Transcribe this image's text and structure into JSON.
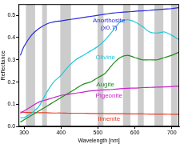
{
  "chart_data": {
    "type": "line",
    "x_label": "Wavelength [nm]",
    "y_label": "Reflectance",
    "xlim": [
      285,
      720
    ],
    "ylim": [
      0,
      0.55
    ],
    "xticks": [
      300,
      400,
      500,
      600,
      700
    ],
    "yticks": [
      {
        "value": 0,
        "label": "0.0"
      },
      0.1,
      0.2,
      0.3,
      0.4,
      0.5
    ],
    "grid": false,
    "x": [
      290,
      300,
      320,
      340,
      360,
      380,
      400,
      420,
      440,
      460,
      480,
      500,
      520,
      540,
      560,
      580,
      600,
      620,
      640,
      660,
      680,
      700,
      720
    ],
    "series": [
      {
        "name": "Anorthosite",
        "color": "#2a2ae0",
        "values": [
          0.32,
          0.36,
          0.41,
          0.44,
          0.46,
          0.47,
          0.475,
          0.48,
          0.485,
          0.49,
          0.495,
          0.5,
          0.505,
          0.51,
          0.513,
          0.515,
          0.518,
          0.52,
          0.522,
          0.525,
          0.528,
          0.53,
          0.535
        ]
      },
      {
        "name": "Olivine",
        "color": "#22c8d8",
        "values": [
          0.04,
          0.04,
          0.06,
          0.09,
          0.15,
          0.2,
          0.23,
          0.27,
          0.3,
          0.32,
          0.34,
          0.36,
          0.39,
          0.43,
          0.47,
          0.48,
          0.47,
          0.45,
          0.425,
          0.42,
          0.425,
          0.41,
          0.39
        ]
      },
      {
        "name": "Augite",
        "color": "#1f8f1f",
        "values": [
          0.02,
          0.03,
          0.05,
          0.07,
          0.09,
          0.11,
          0.13,
          0.15,
          0.17,
          0.19,
          0.2,
          0.22,
          0.24,
          0.28,
          0.31,
          0.32,
          0.31,
          0.3,
          0.3,
          0.3,
          0.31,
          0.32,
          0.335
        ]
      },
      {
        "name": "Pigeonite",
        "color": "#cc22cc",
        "values": [
          0.06,
          0.07,
          0.09,
          0.11,
          0.12,
          0.13,
          0.14,
          0.145,
          0.15,
          0.155,
          0.16,
          0.163,
          0.165,
          0.167,
          0.17,
          0.172,
          0.173,
          0.175,
          0.176,
          0.177,
          0.178,
          0.18,
          0.182
        ]
      },
      {
        "name": "Ilmenite",
        "color": "#e8402a",
        "values": [
          0.065,
          0.064,
          0.063,
          0.062,
          0.062,
          0.061,
          0.061,
          0.06,
          0.06,
          0.06,
          0.059,
          0.059,
          0.058,
          0.058,
          0.058,
          0.057,
          0.057,
          0.057,
          0.056,
          0.056,
          0.056,
          0.055,
          0.055
        ]
      }
    ],
    "bands": [
      [
        305,
        330
      ],
      [
        349,
        362
      ],
      [
        398,
        427
      ],
      [
        499,
        515
      ],
      [
        568,
        588
      ],
      [
        608,
        624
      ],
      [
        653,
        677
      ],
      [
        698,
        716
      ]
    ],
    "annotations": [
      {
        "text": "Anorthosite",
        "x": 530,
        "y": 0.475,
        "color": "#2a2ae0"
      },
      {
        "text": "(x0.7)",
        "x": 530,
        "y": 0.445,
        "color": "#2a2ae0"
      },
      {
        "text": "Olivine",
        "x": 520,
        "y": 0.31,
        "color": "#22c8d8"
      },
      {
        "text": "Augite",
        "x": 520,
        "y": 0.19,
        "color": "#1f8f1f"
      },
      {
        "text": "Pigeonite",
        "x": 530,
        "y": 0.137,
        "color": "#cc22cc"
      },
      {
        "text": "Ilmenite",
        "x": 530,
        "y": 0.035,
        "color": "#e8402a"
      }
    ]
  }
}
